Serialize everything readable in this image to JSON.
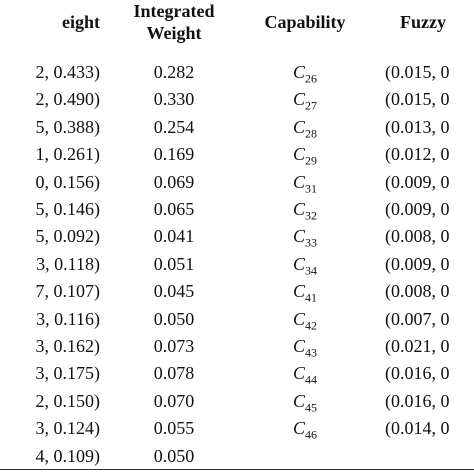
{
  "table": {
    "header": [
      "eight",
      "Integrated Weight",
      "Capability",
      "Fuzzy"
    ],
    "rows": [
      [
        "2, 0.433)",
        "0.282",
        {
          "base": "C",
          "sub": "26"
        },
        "(0.015, 0"
      ],
      [
        "2, 0.490)",
        "0.330",
        {
          "base": "C",
          "sub": "27"
        },
        "(0.015, 0"
      ],
      [
        "5, 0.388)",
        "0.254",
        {
          "base": "C",
          "sub": "28"
        },
        "(0.013, 0"
      ],
      [
        "1, 0.261)",
        "0.169",
        {
          "base": "C",
          "sub": "29"
        },
        "(0.012, 0"
      ],
      [
        "0, 0.156)",
        "0.069",
        {
          "base": "C",
          "sub": "31"
        },
        "(0.009, 0"
      ],
      [
        "5, 0.146)",
        "0.065",
        {
          "base": "C",
          "sub": "32"
        },
        "(0.009, 0"
      ],
      [
        "5, 0.092)",
        "0.041",
        {
          "base": "C",
          "sub": "33"
        },
        "(0.008, 0"
      ],
      [
        "3, 0.118)",
        "0.051",
        {
          "base": "C",
          "sub": "34"
        },
        "(0.009, 0"
      ],
      [
        "7, 0.107)",
        "0.045",
        {
          "base": "C",
          "sub": "41"
        },
        "(0.008, 0"
      ],
      [
        "3, 0.116)",
        "0.050",
        {
          "base": "C",
          "sub": "42"
        },
        "(0.007, 0"
      ],
      [
        "3, 0.162)",
        "0.073",
        {
          "base": "C",
          "sub": "43"
        },
        "(0.021, 0"
      ],
      [
        "3, 0.175)",
        "0.078",
        {
          "base": "C",
          "sub": "44"
        },
        "(0.016, 0"
      ],
      [
        "2, 0.150)",
        "0.070",
        {
          "base": "C",
          "sub": "45"
        },
        "(0.016, 0"
      ],
      [
        "3, 0.124)",
        "0.055",
        {
          "base": "C",
          "sub": "46"
        },
        "(0.014, 0"
      ],
      [
        "4, 0.109)",
        "0.050"
      ]
    ]
  }
}
